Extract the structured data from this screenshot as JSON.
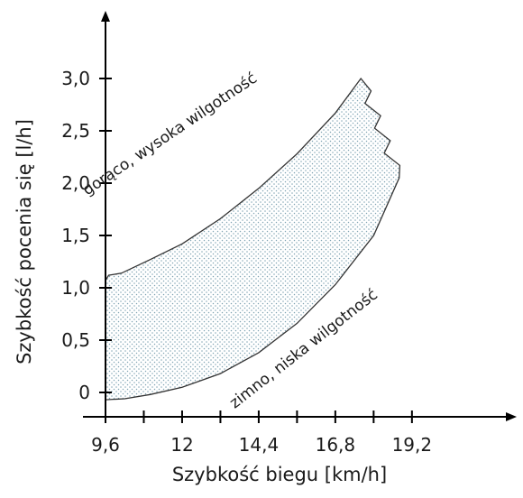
{
  "chart_data": {
    "type": "area",
    "title": "",
    "xlabel": "Szybkość biegu [km/h]",
    "ylabel": "Szybkość pocenia się [l/h]",
    "x_ticks": [
      9.6,
      12,
      14.4,
      16.8,
      19.2
    ],
    "x_tick_labels": [
      "9,6",
      "12",
      "14,4",
      "16,8",
      "19,2"
    ],
    "x_minor_ticks": [
      10.8,
      13.2,
      15.6,
      18.0
    ],
    "y_ticks": [
      0,
      0.5,
      1.0,
      1.5,
      2.0,
      2.5,
      3.0
    ],
    "y_tick_labels": [
      "0",
      "0,5",
      "1,0",
      "1,5",
      "2,0",
      "2,5",
      "3,0"
    ],
    "xlim": [
      9.6,
      21.0
    ],
    "ylim": [
      -0.1,
      3.6
    ],
    "grid": false,
    "series": [
      {
        "upper": {
          "x": [
            9.6,
            9.7,
            10.1,
            11.0,
            12.0,
            13.2,
            14.4,
            15.6,
            16.8,
            17.6
          ],
          "y": [
            1.07,
            1.12,
            1.14,
            1.27,
            1.42,
            1.66,
            1.95,
            2.28,
            2.67,
            3.0
          ]
        },
        "lower": {
          "x": [
            9.6,
            10.2,
            11.0,
            12.0,
            13.2,
            14.4,
            15.6,
            16.8,
            18.0,
            18.8
          ],
          "y": [
            -0.07,
            -0.06,
            -0.02,
            0.05,
            0.18,
            0.38,
            0.66,
            1.03,
            1.5,
            2.05
          ]
        }
      }
    ],
    "annotations": [
      {
        "text": "gorąco, wysoka wilgotność",
        "x": 11.7,
        "y": 2.43,
        "angle_deg": -34
      },
      {
        "text": "zimno, niska wilgotność",
        "x": 15.9,
        "y": 0.38,
        "angle_deg": -38
      }
    ]
  }
}
